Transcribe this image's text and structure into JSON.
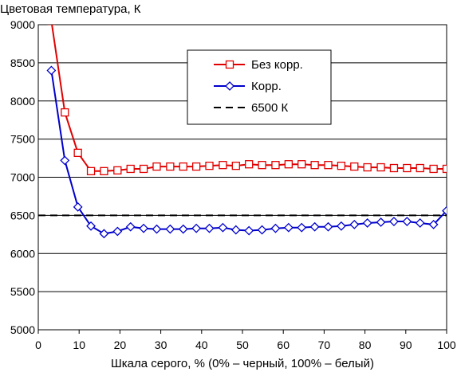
{
  "chart_data": {
    "type": "line",
    "title": "",
    "ylabel": "Цветовая температура, К",
    "xlabel": "Шкала серого, % (0% – черный, 100% – белый)",
    "xlim": [
      0,
      100
    ],
    "ylim": [
      5000,
      9000
    ],
    "x_ticks": [
      "0",
      "10",
      "20",
      "30",
      "40",
      "50",
      "60",
      "70",
      "80",
      "90",
      "100"
    ],
    "y_ticks": [
      "5000",
      "5500",
      "6000",
      "6500",
      "7000",
      "7500",
      "8000",
      "8500",
      "9000"
    ],
    "grid": "horizontal",
    "legend_position": "top-right",
    "series": [
      {
        "name": "Без корр.",
        "color": "#e00000",
        "marker": "square",
        "x": [
          3.2,
          6.5,
          9.7,
          12.9,
          16.1,
          19.4,
          22.6,
          25.8,
          29.0,
          32.3,
          35.5,
          38.7,
          41.9,
          45.2,
          48.4,
          51.6,
          54.8,
          58.1,
          61.3,
          64.5,
          67.7,
          71.0,
          74.2,
          77.4,
          80.6,
          83.9,
          87.1,
          90.3,
          93.5,
          96.8,
          100
        ],
        "y": [
          9050,
          7850,
          7320,
          7080,
          7080,
          7090,
          7110,
          7110,
          7140,
          7140,
          7140,
          7140,
          7150,
          7160,
          7150,
          7170,
          7160,
          7160,
          7170,
          7170,
          7160,
          7160,
          7150,
          7140,
          7130,
          7130,
          7120,
          7120,
          7120,
          7110,
          7110
        ]
      },
      {
        "name": "Корр.",
        "color": "#0000cc",
        "marker": "diamond",
        "x": [
          3.2,
          6.5,
          9.7,
          12.9,
          16.1,
          19.4,
          22.6,
          25.8,
          29.0,
          32.3,
          35.5,
          38.7,
          41.9,
          45.2,
          48.4,
          51.6,
          54.8,
          58.1,
          61.3,
          64.5,
          67.7,
          71.0,
          74.2,
          77.4,
          80.6,
          83.9,
          87.1,
          90.3,
          93.5,
          96.8,
          100
        ],
        "y": [
          8400,
          7220,
          6610,
          6360,
          6260,
          6290,
          6350,
          6330,
          6320,
          6320,
          6320,
          6330,
          6330,
          6340,
          6310,
          6300,
          6310,
          6330,
          6340,
          6340,
          6350,
          6350,
          6360,
          6380,
          6400,
          6410,
          6420,
          6420,
          6400,
          6380,
          6560
        ]
      },
      {
        "name": "6500 К",
        "color": "#000000",
        "dash": "dashed",
        "x": [
          0,
          100
        ],
        "y": [
          6500,
          6500
        ]
      }
    ]
  }
}
